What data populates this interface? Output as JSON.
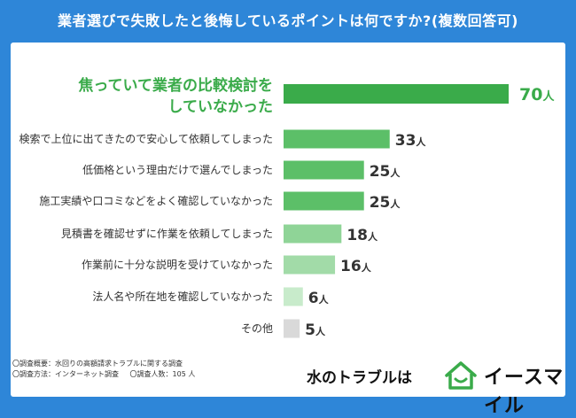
{
  "header": {
    "title": "業者選びで失敗したと後悔しているポイントは何ですか?(複数回答可)"
  },
  "chart_data": {
    "type": "bar",
    "orientation": "horizontal",
    "unit": "人",
    "categories": [
      "焦っていて業者の比較検討をしていなかった",
      "検索で上位に出てきたので安心して依頼してしまった",
      "低価格という理由だけで選んでしまった",
      "施工実績や口コミなどをよく確認していなかった",
      "見積書を確認せずに作業を依頼してしまった",
      "作業前に十分な説明を受けていなかった",
      "法人名や所在地を確認していなかった",
      "その他"
    ],
    "values": [
      70,
      33,
      25,
      25,
      18,
      16,
      6,
      5
    ],
    "colors": [
      "#3aab4a",
      "#5cbf68",
      "#5cbf68",
      "#5cbf68",
      "#8fd497",
      "#a2dba8",
      "#c8ebcb",
      "#d9d9d9"
    ],
    "highlight_color": "#3aab4a"
  },
  "footer": {
    "note1": "〇調査概要：水回りの高額請求トラブルに関する調査",
    "note2": "〇調査方法：インターネット調査",
    "note3": "〇調査人数：105 人"
  },
  "logo": {
    "tagline": "水のトラブルは",
    "brand": "イースマイル",
    "icon": "house-smile-icon"
  }
}
